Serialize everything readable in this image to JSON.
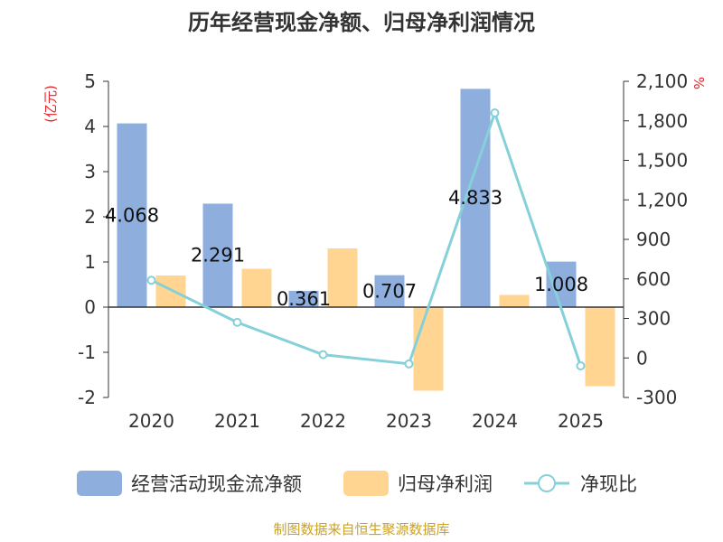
{
  "chart_data": {
    "type": "bar",
    "title": "历年经营现金净额、归母净利润情况",
    "categories": [
      "2020",
      "2021",
      "2022",
      "2023",
      "2024",
      "2025"
    ],
    "series": [
      {
        "name": "经营活动现金流净额",
        "type": "bar",
        "axis": "left",
        "values": [
          4.068,
          2.291,
          0.361,
          0.707,
          4.833,
          1.008
        ],
        "data_labels": [
          "4.068",
          "2.291",
          "0.361",
          "0.707",
          "4.833",
          "1.008"
        ],
        "color": "#8eaedd"
      },
      {
        "name": "归母净利润",
        "type": "bar",
        "axis": "left",
        "values": [
          0.7,
          0.85,
          1.3,
          -1.85,
          0.27,
          -1.75
        ],
        "color": "#ffd591"
      },
      {
        "name": "净现比",
        "type": "line",
        "axis": "right",
        "values": [
          590,
          270,
          25,
          -45,
          1860,
          -60
        ],
        "color": "#86d0d9"
      }
    ],
    "y_left": {
      "unit": "(亿元)",
      "ylim": [
        -2,
        5
      ],
      "ticks": [
        "5",
        "4",
        "3",
        "2",
        "1",
        "0",
        "-1",
        "-2"
      ]
    },
    "y_right": {
      "unit": "%",
      "ylim": [
        -300,
        2100
      ],
      "ticks": [
        "2,100",
        "1,800",
        "1,500",
        "1,200",
        "900",
        "600",
        "300",
        "0",
        "-300"
      ]
    },
    "legend_position": "bottom",
    "source": "制图数据来自恒生聚源数据库"
  }
}
